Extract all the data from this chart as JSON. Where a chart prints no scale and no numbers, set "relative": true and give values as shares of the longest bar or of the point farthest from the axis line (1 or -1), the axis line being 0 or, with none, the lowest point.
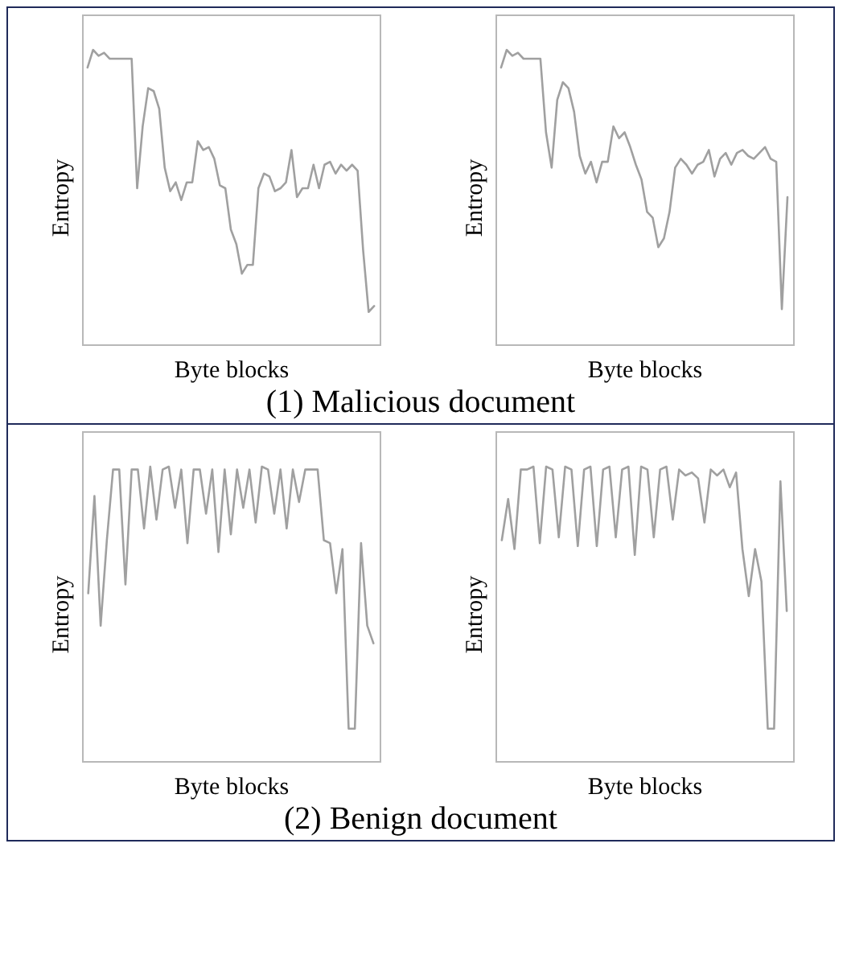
{
  "chart_data": [
    {
      "type": "line",
      "relative": true,
      "xlabel": "Byte blocks",
      "ylabel": "Entropy",
      "color": "#a0a0a0",
      "annotations": [
        "(1) Malicious document"
      ],
      "categories": [
        null,
        null,
        null,
        null,
        null,
        null,
        null,
        null,
        null,
        null,
        null,
        null,
        null,
        null,
        null,
        null,
        null,
        null,
        null,
        null,
        null,
        null,
        null,
        null,
        null,
        null,
        null,
        null,
        null,
        null,
        null,
        null,
        null,
        null,
        null,
        null,
        null,
        null,
        null,
        null,
        null,
        null,
        null,
        null,
        null,
        null,
        null,
        null,
        null,
        null,
        null,
        null,
        null
      ],
      "values": [
        0.94,
        1,
        0.98,
        0.99,
        0.97,
        0.97,
        0.97,
        0.97,
        0.97,
        0.53,
        0.74,
        0.87,
        0.86,
        0.8,
        0.6,
        0.52,
        0.55,
        0.49,
        0.55,
        0.55,
        0.69,
        0.66,
        0.67,
        0.63,
        0.54,
        0.53,
        0.39,
        0.34,
        0.24,
        0.27,
        0.27,
        0.53,
        0.58,
        0.57,
        0.52,
        0.53,
        0.55,
        0.66,
        0.5,
        0.53,
        0.53,
        0.61,
        0.53,
        0.61,
        0.62,
        0.58,
        0.61,
        0.59,
        0.61,
        0.59,
        0.32,
        0.11,
        0.13
      ]
    },
    {
      "type": "line",
      "relative": true,
      "xlabel": "Byte blocks",
      "ylabel": "Entropy",
      "color": "#a0a0a0",
      "categories": [
        null,
        null,
        null,
        null,
        null,
        null,
        null,
        null,
        null,
        null,
        null,
        null,
        null,
        null,
        null,
        null,
        null,
        null,
        null,
        null,
        null,
        null,
        null,
        null,
        null,
        null,
        null,
        null,
        null,
        null,
        null,
        null,
        null,
        null,
        null,
        null,
        null,
        null,
        null,
        null,
        null,
        null,
        null,
        null,
        null,
        null,
        null,
        null,
        null,
        null,
        null,
        null
      ],
      "values": [
        0.94,
        1,
        0.98,
        0.99,
        0.97,
        0.97,
        0.97,
        0.97,
        0.72,
        0.6,
        0.83,
        0.89,
        0.87,
        0.79,
        0.64,
        0.58,
        0.62,
        0.55,
        0.62,
        0.62,
        0.74,
        0.7,
        0.72,
        0.67,
        0.61,
        0.56,
        0.45,
        0.43,
        0.33,
        0.36,
        0.45,
        0.6,
        0.63,
        0.61,
        0.58,
        0.61,
        0.62,
        0.66,
        0.57,
        0.63,
        0.65,
        0.61,
        0.65,
        0.66,
        0.64,
        0.63,
        0.65,
        0.67,
        0.63,
        0.62,
        0.12,
        0.5
      ]
    },
    {
      "type": "line",
      "relative": true,
      "xlabel": "Byte blocks",
      "ylabel": "Entropy",
      "color": "#a0a0a0",
      "annotations": [
        "(2) Benign document"
      ],
      "categories": [
        null,
        null,
        null,
        null,
        null,
        null,
        null,
        null,
        null,
        null,
        null,
        null,
        null,
        null,
        null,
        null,
        null,
        null,
        null,
        null,
        null,
        null,
        null,
        null,
        null,
        null,
        null,
        null,
        null,
        null,
        null,
        null,
        null,
        null,
        null,
        null,
        null,
        null,
        null,
        null,
        null,
        null,
        null,
        null,
        null,
        null,
        null
      ],
      "values": [
        0.57,
        0.9,
        0.46,
        0.75,
        0.99,
        0.99,
        0.6,
        0.99,
        0.99,
        0.79,
        1,
        0.82,
        0.99,
        1,
        0.86,
        0.99,
        0.74,
        0.99,
        0.99,
        0.84,
        0.99,
        0.71,
        0.99,
        0.77,
        0.99,
        0.86,
        0.99,
        0.81,
        1,
        0.99,
        0.84,
        0.99,
        0.79,
        0.99,
        0.88,
        0.99,
        0.99,
        0.99,
        0.75,
        0.74,
        0.57,
        0.72,
        0.11,
        0.11,
        0.74,
        0.46,
        0.4
      ]
    },
    {
      "type": "line",
      "relative": true,
      "xlabel": "Byte blocks",
      "ylabel": "Entropy",
      "color": "#a0a0a0",
      "categories": [
        null,
        null,
        null,
        null,
        null,
        null,
        null,
        null,
        null,
        null,
        null,
        null,
        null,
        null,
        null,
        null,
        null,
        null,
        null,
        null,
        null,
        null,
        null,
        null,
        null,
        null,
        null,
        null,
        null,
        null,
        null,
        null,
        null,
        null,
        null,
        null,
        null,
        null,
        null,
        null,
        null,
        null,
        null,
        null,
        null,
        null
      ],
      "values": [
        0.75,
        0.89,
        0.72,
        0.99,
        0.99,
        1,
        0.74,
        1,
        0.99,
        0.76,
        1,
        0.99,
        0.73,
        0.99,
        1,
        0.73,
        0.99,
        1,
        0.76,
        0.99,
        1,
        0.7,
        1,
        0.99,
        0.76,
        0.99,
        1,
        0.82,
        0.99,
        0.97,
        0.98,
        0.96,
        0.81,
        0.99,
        0.97,
        0.99,
        0.93,
        0.98,
        0.72,
        0.56,
        0.72,
        0.61,
        0.11,
        0.11,
        0.95,
        0.51
      ]
    }
  ]
}
